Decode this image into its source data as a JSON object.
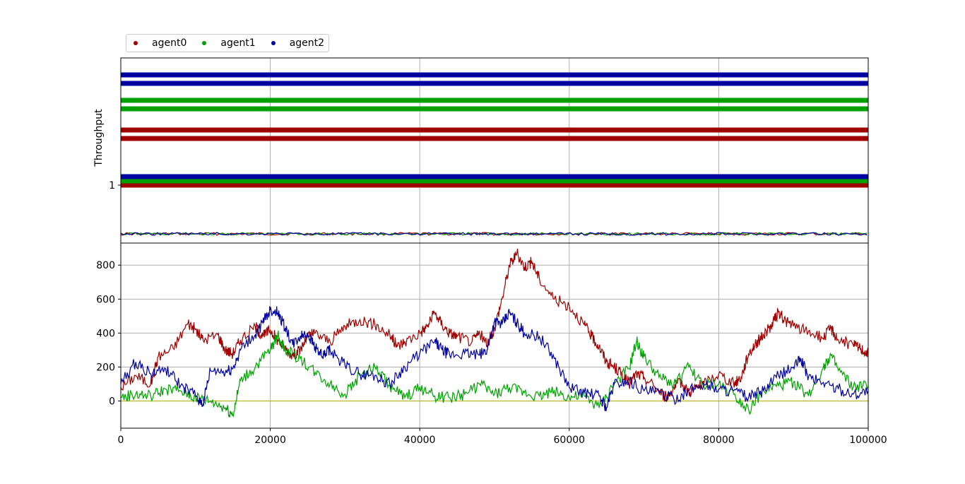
{
  "chart_data": [
    {
      "type": "line",
      "title": "",
      "xlabel": "",
      "ylabel": "Throughput",
      "xlim": [
        0,
        100000
      ],
      "grid": true,
      "yticks": [
        "1"
      ],
      "legend": {
        "placement": "top-left",
        "entries": [
          "agent0",
          "agent1",
          "agent2"
        ]
      },
      "series": [
        {
          "name": "agent0",
          "color": "#a00000",
          "levels": [
            1.0,
            1.55,
            1.65
          ],
          "baseline_noise_level": 0.1
        },
        {
          "name": "agent1",
          "color": "#00a000",
          "levels": [
            1.05,
            1.9,
            2.0
          ],
          "baseline_noise_level": 0.1
        },
        {
          "name": "agent2",
          "color": "#0000a0",
          "levels": [
            1.1,
            2.2,
            2.3
          ],
          "baseline_noise_level": 0.1
        }
      ]
    },
    {
      "type": "line",
      "title": "",
      "xlabel": "",
      "ylabel": "",
      "xlim": [
        0,
        100000
      ],
      "ylim": [
        -160,
        930
      ],
      "grid": true,
      "xticks": [
        "0",
        "20000",
        "40000",
        "60000",
        "80000",
        "100000"
      ],
      "yticks": [
        "0",
        "200",
        "400",
        "600",
        "800"
      ],
      "zero_line_color": "#bfbf40",
      "series": [
        {
          "name": "agent0",
          "color": "#a00000",
          "x": [
            0,
            2000,
            4000,
            5000,
            7000,
            9000,
            10000,
            11000,
            13000,
            14000,
            15000,
            16000,
            18000,
            19000,
            20000,
            21000,
            22000,
            23000,
            24000,
            25000,
            26000,
            28000,
            30000,
            32000,
            34000,
            36000,
            37000,
            38000,
            40000,
            41000,
            42000,
            43000,
            44000,
            45000,
            47000,
            48000,
            49000,
            50000,
            51000,
            52000,
            53000,
            54000,
            55000,
            56000,
            58000,
            60000,
            62000,
            63000,
            64000,
            65000,
            66000,
            67000,
            68000,
            69000,
            70000,
            72000,
            73000,
            74000,
            75000,
            76000,
            77000,
            78000,
            80000,
            82000,
            83000,
            84000,
            85000,
            86000,
            87000,
            88000,
            89000,
            90000,
            92000,
            94000,
            95000,
            96000,
            98000,
            99000,
            100000
          ],
          "y": [
            80,
            150,
            100,
            260,
            310,
            460,
            420,
            360,
            390,
            300,
            280,
            360,
            440,
            380,
            420,
            360,
            310,
            270,
            300,
            380,
            400,
            350,
            440,
            480,
            450,
            390,
            320,
            350,
            400,
            440,
            520,
            450,
            400,
            380,
            350,
            400,
            330,
            430,
            600,
            800,
            870,
            790,
            820,
            720,
            600,
            560,
            450,
            380,
            320,
            230,
            200,
            160,
            100,
            160,
            140,
            60,
            20,
            80,
            110,
            50,
            80,
            100,
            160,
            100,
            140,
            280,
            340,
            390,
            440,
            520,
            470,
            440,
            410,
            370,
            430,
            360,
            330,
            310,
            280
          ]
        },
        {
          "name": "agent1",
          "color": "#00a000",
          "x": [
            0,
            2000,
            4000,
            6000,
            8000,
            10000,
            12000,
            14000,
            15000,
            16000,
            18000,
            20000,
            21000,
            22000,
            24000,
            26000,
            28000,
            30000,
            32000,
            34000,
            36000,
            38000,
            40000,
            42000,
            44000,
            46000,
            48000,
            50000,
            52000,
            54000,
            56000,
            58000,
            60000,
            62000,
            64000,
            66000,
            68000,
            69000,
            70000,
            72000,
            74000,
            76000,
            78000,
            80000,
            82000,
            84000,
            86000,
            88000,
            90000,
            92000,
            94000,
            95000,
            96000,
            98000,
            100000
          ],
          "y": [
            20,
            40,
            30,
            70,
            60,
            20,
            0,
            -40,
            -80,
            120,
            200,
            300,
            390,
            300,
            250,
            170,
            100,
            40,
            150,
            200,
            90,
            20,
            80,
            30,
            20,
            40,
            100,
            40,
            80,
            50,
            30,
            60,
            20,
            30,
            -40,
            100,
            190,
            350,
            260,
            140,
            100,
            200,
            90,
            100,
            40,
            -50,
            60,
            90,
            110,
            30,
            200,
            270,
            180,
            80,
            90
          ]
        },
        {
          "name": "agent2",
          "color": "#0000a0",
          "x": [
            0,
            2000,
            4000,
            6000,
            8000,
            10000,
            11000,
            12000,
            14000,
            15000,
            16000,
            18000,
            19000,
            20000,
            21000,
            22000,
            23000,
            24000,
            25000,
            26000,
            27000,
            28000,
            30000,
            32000,
            34000,
            36000,
            38000,
            40000,
            42000,
            43000,
            44000,
            46000,
            48000,
            49000,
            50000,
            51000,
            52000,
            53000,
            54000,
            56000,
            58000,
            60000,
            62000,
            64000,
            65000,
            66000,
            68000,
            70000,
            72000,
            74000,
            76000,
            78000,
            80000,
            82000,
            84000,
            86000,
            88000,
            90000,
            91000,
            92000,
            94000,
            96000,
            98000,
            100000
          ],
          "y": [
            100,
            230,
            160,
            190,
            90,
            30,
            -20,
            180,
            170,
            190,
            300,
            390,
            460,
            540,
            520,
            430,
            330,
            380,
            400,
            320,
            260,
            300,
            210,
            160,
            150,
            100,
            200,
            280,
            350,
            300,
            270,
            280,
            270,
            300,
            470,
            450,
            520,
            460,
            400,
            380,
            250,
            80,
            50,
            30,
            -40,
            100,
            120,
            60,
            50,
            10,
            60,
            100,
            70,
            60,
            20,
            60,
            150,
            200,
            250,
            140,
            110,
            70,
            40,
            60
          ]
        }
      ]
    }
  ]
}
